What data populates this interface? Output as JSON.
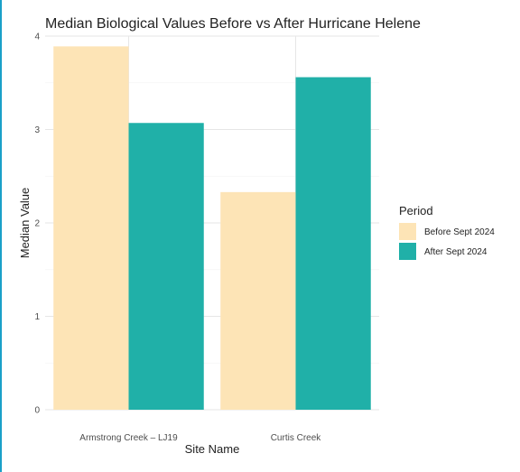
{
  "chart_data": {
    "type": "bar",
    "title": "Median Biological Values Before vs After Hurricane Helene",
    "xlabel": "Site Name",
    "ylabel": "Median Value",
    "categories": [
      "Armstrong Creek – LJ19",
      "Curtis Creek"
    ],
    "series": [
      {
        "name": "Before Sept 2024",
        "color": "#fde4b6",
        "values": [
          3.89,
          2.33
        ]
      },
      {
        "name": "After Sept 2024",
        "color": "#20b0a8",
        "values": [
          3.07,
          3.56
        ]
      }
    ],
    "ylim": [
      0,
      4
    ],
    "yticks": [
      0,
      1,
      2,
      3,
      4
    ],
    "grid": true,
    "legend": {
      "title": "Period",
      "placement": "right"
    }
  }
}
